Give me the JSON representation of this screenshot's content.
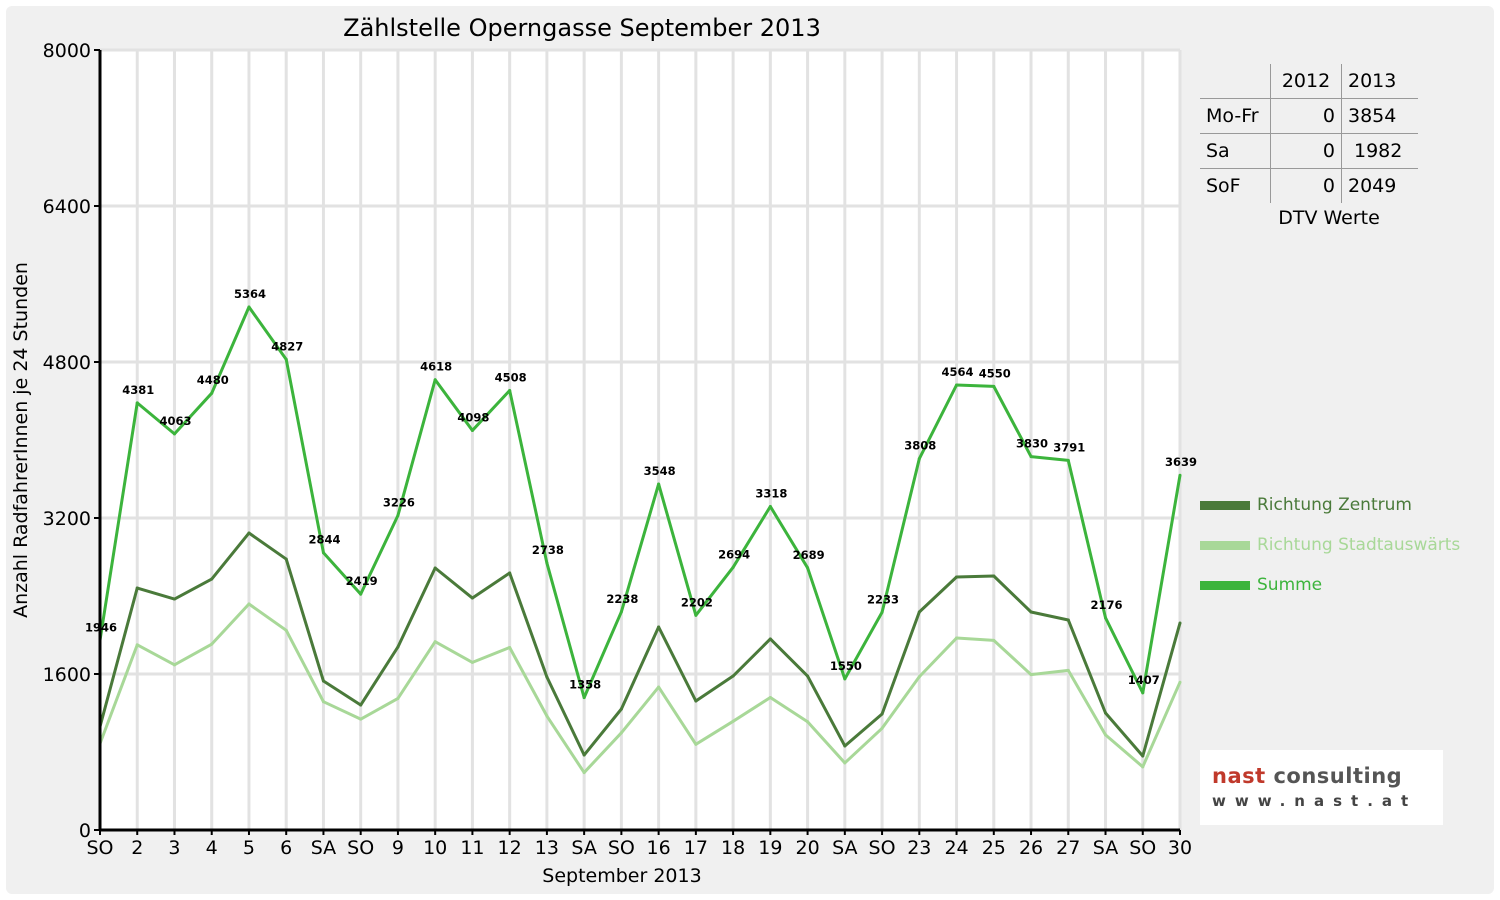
{
  "chart_data": {
    "type": "line",
    "title": "Zählstelle Operngasse September 2013",
    "xlabel": "September 2013",
    "ylabel": "Anzahl RadfahrerInnen je 24 Stunden",
    "ylim": [
      0,
      8000
    ],
    "yticks": [
      "0",
      "1600",
      "3200",
      "4800",
      "6400",
      "8000"
    ],
    "grid": true,
    "legend_position": "right",
    "categories": [
      "SO",
      "2",
      "3",
      "4",
      "5",
      "6",
      "SA",
      "SO",
      "9",
      "10",
      "11",
      "12",
      "13",
      "SA",
      "SO",
      "16",
      "17",
      "18",
      "19",
      "20",
      "SA",
      "SO",
      "23",
      "24",
      "25",
      "26",
      "27",
      "SA",
      "SO",
      "30"
    ],
    "weekend_label_color": "#ff0000",
    "series": [
      {
        "name": "Richtung Zentrum",
        "color": "#4a7a3a",
        "values": [
          1060,
          2482,
          2369,
          2574,
          3046,
          2779,
          1528,
          1282,
          1877,
          2687,
          2379,
          2636,
          1569,
          769,
          1241,
          2082,
          1323,
          1579,
          1959,
          1579,
          862,
          1190,
          2236,
          2595,
          2605,
          2236,
          2154,
          1200,
          759,
          2123
        ]
      },
      {
        "name": "Richtung Stadtauswärts",
        "color": "#a8d898",
        "values": [
          886,
          1899,
          1694,
          1906,
          2318,
          2048,
          1316,
          1137,
          1349,
          1931,
          1719,
          1872,
          1169,
          589,
          997,
          1466,
          879,
          1115,
          1359,
          1110,
          688,
          1043,
          1572,
          1969,
          1945,
          1594,
          1637,
          976,
          648,
          1516
        ]
      },
      {
        "name": "Summe",
        "color": "#3cb43c",
        "labeled": true,
        "values": [
          1946,
          4381,
          4063,
          4480,
          5364,
          4827,
          2844,
          2419,
          3226,
          4618,
          4098,
          4508,
          2738,
          1358,
          2238,
          3548,
          2202,
          2694,
          3318,
          2689,
          1550,
          2233,
          3808,
          4564,
          4550,
          3830,
          3791,
          2176,
          1407,
          3639
        ]
      }
    ]
  },
  "dtv_table": {
    "headers": [
      "",
      "2012",
      "2013"
    ],
    "rows": [
      {
        "label": "Mo-Fr",
        "v2012": "0",
        "v2013": "3854"
      },
      {
        "label": "Sa",
        "v2012": "0",
        "v2013": "1982"
      },
      {
        "label": "SoF",
        "v2012": "0",
        "v2013": "2049"
      }
    ],
    "caption": "DTV Werte"
  },
  "logo": {
    "line1a": "nast",
    "line1b": "consulting",
    "line2": "www.nast.at"
  }
}
